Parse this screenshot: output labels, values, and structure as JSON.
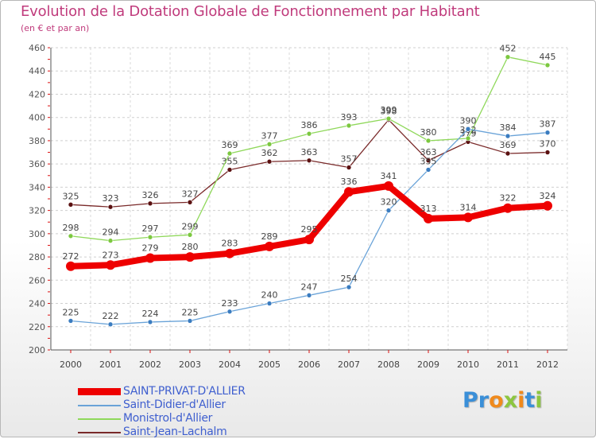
{
  "title": "Evolution de la Dotation Globale de Fonctionnement par Habitant",
  "subtitle": "(en € et par an)",
  "logo": {
    "letters": [
      "P",
      "r",
      "o",
      "x",
      "i",
      "t",
      "i"
    ],
    "colors": [
      "#3a8fd8",
      "#3a8fd8",
      "#f08a1c",
      "#8cc63f",
      "#f08a1c",
      "#3a8fd8",
      "#8cc63f"
    ]
  },
  "chart_data": {
    "type": "line",
    "title": "Evolution de la Dotation Globale de Fonctionnement par Habitant",
    "subtitle": "(en € et par an)",
    "xlabel": "",
    "ylabel": "",
    "ylim": [
      200,
      460
    ],
    "yticks": [
      200,
      220,
      240,
      260,
      280,
      300,
      320,
      340,
      360,
      380,
      400,
      420,
      440,
      460
    ],
    "x": [
      "2000",
      "2001",
      "2002",
      "2003",
      "2004",
      "2005",
      "2006",
      "2007",
      "2008",
      "2009",
      "2010",
      "2011",
      "2012"
    ],
    "grid": true,
    "legend_position": "bottom-left",
    "series": [
      {
        "name": "Saint-Jean-Lachalm",
        "color": "#7a2a2a",
        "marker": "#5a1010",
        "values": [
          325,
          323,
          326,
          327,
          355,
          362,
          363,
          357,
          398,
          363,
          379,
          369,
          370
        ],
        "labels": [
          "325",
          "323",
          "326",
          "327",
          "355",
          "362",
          "363",
          "357",
          "398",
          "363",
          "379",
          "369",
          "370"
        ]
      },
      {
        "name": "Monistrol-d'Allier",
        "color": "#8fd85a",
        "marker": "#7cc840",
        "values": [
          298,
          294,
          297,
          299,
          369,
          377,
          386,
          393,
          399,
          380,
          382,
          452,
          445
        ],
        "labels": [
          "298",
          "294",
          "297",
          "299",
          "369",
          "377",
          "386",
          "393",
          "399",
          "380",
          "382",
          "452",
          "445"
        ]
      },
      {
        "name": "Saint-Didier-d'Allier",
        "color": "#6aa3d8",
        "marker": "#3a7cc0",
        "values": [
          225,
          222,
          224,
          225,
          233,
          240,
          247,
          254,
          320,
          355,
          390,
          384,
          387
        ],
        "labels": [
          "225",
          "222",
          "224",
          "225",
          "233",
          "240",
          "247",
          "254",
          "320",
          "355",
          "390",
          "384",
          "387"
        ]
      },
      {
        "name": "SAINT-PRIVAT-D'ALLIER",
        "color": "#ee0000",
        "marker": "#ee0000",
        "values": [
          272,
          273,
          279,
          280,
          283,
          289,
          295,
          336,
          341,
          313,
          314,
          322,
          324
        ],
        "labels": [
          "272",
          "273",
          "279",
          "280",
          "283",
          "289",
          "295",
          "336",
          "341",
          "313",
          "314",
          "322",
          "324"
        ]
      }
    ],
    "legend": [
      {
        "name": "SAINT-PRIVAT-D'ALLIER",
        "color": "#ee0000"
      },
      {
        "name": "Saint-Didier-d'Allier",
        "color": "#6aa3d8"
      },
      {
        "name": "Monistrol-d'Allier",
        "color": "#8fd85a"
      },
      {
        "name": "Saint-Jean-Lachalm",
        "color": "#7a2a2a"
      }
    ]
  }
}
